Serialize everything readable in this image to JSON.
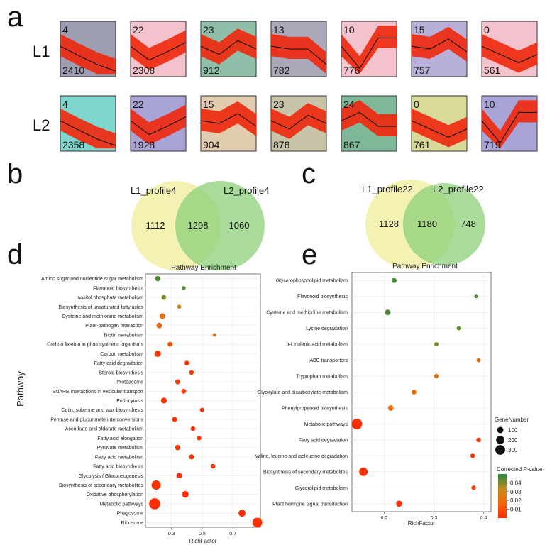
{
  "panels": {
    "a": "a",
    "b": "b",
    "c": "c",
    "d": "d",
    "e": "e"
  },
  "profiles": {
    "rows": [
      {
        "label": "L1",
        "tiles": [
          {
            "profile": "4",
            "count": "2410",
            "color": "#9e9eb2",
            "line": [
              0.62,
              0.78,
              0.9
            ]
          },
          {
            "profile": "22",
            "count": "2308",
            "color": "#f4c2cc",
            "line": [
              0.7,
              0.55,
              0.38
            ]
          },
          {
            "profile": "23",
            "count": "912",
            "color": "#8fbfa8",
            "line": [
              0.6,
              0.35,
              0.5
            ]
          },
          {
            "profile": "13",
            "count": "782",
            "color": "#a8a8b8",
            "line": [
              0.5,
              0.5,
              0.78
            ]
          },
          {
            "profile": "10",
            "count": "776",
            "color": "#f4c2cc",
            "line": [
              0.85,
              0.3,
              0.3
            ]
          },
          {
            "profile": "15",
            "count": "757",
            "color": "#b8b0d8",
            "line": [
              0.5,
              0.32,
              0.55
            ]
          },
          {
            "profile": "0",
            "count": "561",
            "color": "#f4c2cc",
            "line": [
              0.6,
              0.75,
              0.6
            ]
          }
        ]
      },
      {
        "label": "L2",
        "tiles": [
          {
            "profile": "4",
            "count": "2358",
            "color": "#7fd6cc",
            "line": [
              0.62,
              0.78,
              0.9
            ]
          },
          {
            "profile": "22",
            "count": "1928",
            "color": "#a9a4d6",
            "line": [
              0.7,
              0.55,
              0.38
            ]
          },
          {
            "profile": "15",
            "count": "904",
            "color": "#e2ccb0",
            "line": [
              0.5,
              0.32,
              0.55
            ]
          },
          {
            "profile": "23",
            "count": "878",
            "color": "#c8c4a8",
            "line": [
              0.6,
              0.35,
              0.5
            ]
          },
          {
            "profile": "24",
            "count": "867",
            "color": "#7fb898",
            "line": [
              0.3,
              0.55,
              0.55
            ]
          },
          {
            "profile": "0",
            "count": "761",
            "color": "#d9d99a",
            "line": [
              0.6,
              0.75,
              0.6
            ]
          },
          {
            "profile": "10",
            "count": "719",
            "color": "#a9a4d6",
            "line": [
              0.85,
              0.3,
              0.3
            ]
          }
        ]
      }
    ]
  },
  "venn_b": {
    "left_label": "L1_profile4",
    "right_label": "L2_profile4",
    "left_only": "1112",
    "overlap": "1298",
    "right_only": "1060",
    "left_color": "#f0ee9a",
    "right_color": "#8ccf7a"
  },
  "venn_c": {
    "left_label": "L1_profile22",
    "right_label": "L2_profile22",
    "left_only": "1128",
    "overlap": "1180",
    "right_only": "748",
    "left_color": "#f0ee9a",
    "right_color": "#8ccf7a"
  },
  "chart_data": [
    {
      "type": "scatter",
      "panel": "d",
      "title": "Pathway Enrichment",
      "xlabel": "RichFactor",
      "ylabel": "Pathway",
      "xlim": [
        0.13,
        0.88
      ],
      "xticks": [
        "0.3",
        "0.5",
        "0.7"
      ],
      "xtick_values": [
        0.3,
        0.5,
        0.7
      ],
      "points": [
        {
          "pathway": "Amino sugar and nucleotide sugar metabolism",
          "x": 0.21,
          "genes": 60,
          "p": 0.045
        },
        {
          "pathway": "Flavonoid biosynthesis",
          "x": 0.38,
          "genes": 20,
          "p": 0.043
        },
        {
          "pathway": "Inositol phosphate metabolism",
          "x": 0.25,
          "genes": 40,
          "p": 0.04
        },
        {
          "pathway": "Biosynthesis of unsaturated fatty acids",
          "x": 0.35,
          "genes": 25,
          "p": 0.03
        },
        {
          "pathway": "Cysteine and methionine metabolism",
          "x": 0.24,
          "genes": 70,
          "p": 0.02
        },
        {
          "pathway": "Plant-pathogen interaction",
          "x": 0.22,
          "genes": 70,
          "p": 0.015
        },
        {
          "pathway": "Biotin metabolism",
          "x": 0.58,
          "genes": 15,
          "p": 0.022
        },
        {
          "pathway": "Carbon fixation in photosynthetic organisms",
          "x": 0.29,
          "genes": 45,
          "p": 0.01
        },
        {
          "pathway": "Carbon metabolism",
          "x": 0.21,
          "genes": 100,
          "p": 0.005
        },
        {
          "pathway": "Fatty acid degradation",
          "x": 0.4,
          "genes": 45,
          "p": 0.005
        },
        {
          "pathway": "Steroid biosynthesis",
          "x": 0.43,
          "genes": 40,
          "p": 0.004
        },
        {
          "pathway": "Proteasome",
          "x": 0.34,
          "genes": 50,
          "p": 0.004
        },
        {
          "pathway": "SNARE interactions in vesicular transport",
          "x": 0.38,
          "genes": 45,
          "p": 0.004
        },
        {
          "pathway": "Endocytosis",
          "x": 0.25,
          "genes": 80,
          "p": 0.003
        },
        {
          "pathway": "Cutin, suberine and wax biosynthesis",
          "x": 0.5,
          "genes": 35,
          "p": 0.003
        },
        {
          "pathway": "Pentose and glucuronate interconversions",
          "x": 0.32,
          "genes": 50,
          "p": 0.003
        },
        {
          "pathway": "Ascorbate and aldarate metabolism",
          "x": 0.44,
          "genes": 40,
          "p": 0.002
        },
        {
          "pathway": "Fatty acid elongation",
          "x": 0.48,
          "genes": 35,
          "p": 0.002
        },
        {
          "pathway": "Pyruvate metabolism",
          "x": 0.34,
          "genes": 60,
          "p": 0.002
        },
        {
          "pathway": "Fatty acid metabolism",
          "x": 0.43,
          "genes": 50,
          "p": 0.002
        },
        {
          "pathway": "Fatty acid biosynthesis",
          "x": 0.57,
          "genes": 40,
          "p": 0.002
        },
        {
          "pathway": "Glycolysis / Gluconeogenesis",
          "x": 0.35,
          "genes": 70,
          "p": 0.001
        },
        {
          "pathway": "Biosynthesis of secondary metabolites",
          "x": 0.2,
          "genes": 260,
          "p": 0.001
        },
        {
          "pathway": "Oxidative phosphorylation",
          "x": 0.39,
          "genes": 110,
          "p": 0.001
        },
        {
          "pathway": "Metabolic pathways",
          "x": 0.19,
          "genes": 400,
          "p": 0.001
        },
        {
          "pathway": "Phagosome",
          "x": 0.76,
          "genes": 130,
          "p": 0.001
        },
        {
          "pathway": "Ribosome",
          "x": 0.86,
          "genes": 300,
          "p": 0.001
        }
      ]
    },
    {
      "type": "scatter",
      "panel": "e",
      "title": "Pathway Enrichment",
      "xlabel": "RichFactor",
      "ylabel": "",
      "xlim": [
        0.135,
        0.415
      ],
      "xticks": [
        "0.2",
        "0.3",
        "0.4"
      ],
      "xtick_values": [
        0.2,
        0.3,
        0.4
      ],
      "points": [
        {
          "pathway": "Glycerophospholipid metabolism",
          "x": 0.22,
          "genes": 50,
          "p": 0.045
        },
        {
          "pathway": "Flavonoid biosynthesis",
          "x": 0.385,
          "genes": 15,
          "p": 0.045
        },
        {
          "pathway": "Cysteine and methionine metabolism",
          "x": 0.207,
          "genes": 70,
          "p": 0.045
        },
        {
          "pathway": "Lysine degradation",
          "x": 0.35,
          "genes": 25,
          "p": 0.043
        },
        {
          "pathway": "α-Linolenic acid metabolism",
          "x": 0.305,
          "genes": 30,
          "p": 0.04
        },
        {
          "pathway": "ABC transporters",
          "x": 0.39,
          "genes": 25,
          "p": 0.022
        },
        {
          "pathway": "Tryptophan metabolism",
          "x": 0.305,
          "genes": 35,
          "p": 0.022
        },
        {
          "pathway": "Glyoxylate and dicarboxylate metabolism",
          "x": 0.26,
          "genes": 45,
          "p": 0.02
        },
        {
          "pathway": "Phenylpropanoid biosynthesis",
          "x": 0.213,
          "genes": 65,
          "p": 0.018
        },
        {
          "pathway": "Metabolic pathways",
          "x": 0.145,
          "genes": 360,
          "p": 0.001
        },
        {
          "pathway": "Fatty acid degradation",
          "x": 0.39,
          "genes": 40,
          "p": 0.005
        },
        {
          "pathway": "Valine, leucine and isoleucine degradation",
          "x": 0.378,
          "genes": 35,
          "p": 0.004
        },
        {
          "pathway": "Biosynthesis of secondary metabolites",
          "x": 0.158,
          "genes": 210,
          "p": 0.001
        },
        {
          "pathway": "Glycerolipid metabolism",
          "x": 0.38,
          "genes": 35,
          "p": 0.004
        },
        {
          "pathway": "Plant hormone signal transduction",
          "x": 0.23,
          "genes": 90,
          "p": 0.001
        }
      ],
      "legend": {
        "size_title": "GeneNumber",
        "size_values": [
          "100",
          "200",
          "300"
        ],
        "size_numbers": [
          100,
          200,
          300
        ],
        "color_title_prefix": "Corrected ",
        "color_title_italic": "P",
        "color_title_suffix": "-value",
        "color_ticks": [
          "0.04",
          "0.03",
          "0.02",
          "0.01"
        ],
        "color_tick_values": [
          0.04,
          0.03,
          0.02,
          0.01
        ],
        "color_range": [
          0.0,
          0.05
        ]
      }
    }
  ]
}
